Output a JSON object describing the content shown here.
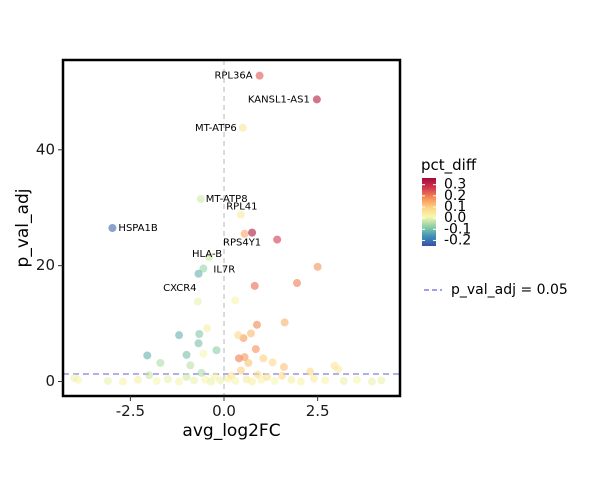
{
  "chart_data": {
    "type": "scatter",
    "xlabel": "avg_log2FC",
    "ylabel": "p_val_adj",
    "xlim": [
      -4.3,
      4.7
    ],
    "ylim": [
      -2.5,
      55.5
    ],
    "x_ticks": [
      -2.5,
      0.0,
      2.5
    ],
    "x_tick_labels": [
      "-2.5",
      "0.0",
      "2.5"
    ],
    "y_ticks": [
      0,
      20,
      40
    ],
    "y_tick_labels": [
      "0",
      "20",
      "40"
    ],
    "grid": false,
    "reference_lines": {
      "vertical_x": 0,
      "horizontal_y": 1.3,
      "horizontal_label": "p_val_adj = 0.05",
      "horizontal_color": "#8080e0"
    },
    "color_scale": {
      "title": "pct_diff",
      "min": -0.25,
      "max": 0.36,
      "ticks": [
        0.3,
        0.2,
        0.1,
        0.0,
        -0.1,
        -0.2
      ],
      "tick_labels": [
        "0.3",
        "0.2",
        "0.1",
        "0.0",
        "-0.1",
        "-0.2"
      ],
      "stops": [
        "#3b4ea8",
        "#3f90b7",
        "#8fd0a4",
        "#f7f7b0",
        "#fdd080",
        "#f58a55",
        "#d0364c",
        "#a40a3c"
      ]
    },
    "legend_position": "right",
    "labeled_points": [
      {
        "gene": "RPL36A",
        "x": 0.95,
        "y": 52.8,
        "c": 0.24
      },
      {
        "gene": "KANSL1-AS1",
        "x": 2.48,
        "y": 48.7,
        "c": 0.33
      },
      {
        "gene": "MT-ATP6",
        "x": 0.5,
        "y": 43.8,
        "c": 0.05
      },
      {
        "gene": "MT-ATP8",
        "x": -0.62,
        "y": 31.5,
        "c": -0.02
      },
      {
        "gene": "RPL41",
        "x": 0.45,
        "y": 28.8,
        "c": 0.04
      },
      {
        "gene": "HSPA1B",
        "x": -2.98,
        "y": 26.5,
        "c": -0.22
      },
      {
        "gene": "RPS4Y1",
        "x": 0.75,
        "y": 25.7,
        "c": 0.34
      },
      {
        "gene": "HLA-B",
        "x": -0.4,
        "y": 21.5,
        "c": -0.03
      },
      {
        "gene": "IL7R",
        "x": -0.55,
        "y": 19.5,
        "c": -0.07
      },
      {
        "gene": "CXCR4",
        "x": -0.68,
        "y": 18.6,
        "c": -0.12
      }
    ],
    "points": [
      {
        "x": 1.42,
        "y": 24.5,
        "c": 0.27
      },
      {
        "x": 0.55,
        "y": 25.5,
        "c": 0.15
      },
      {
        "x": 2.5,
        "y": 19.8,
        "c": 0.18
      },
      {
        "x": 1.95,
        "y": 17.0,
        "c": 0.2
      },
      {
        "x": 0.82,
        "y": 16.5,
        "c": 0.22
      },
      {
        "x": -0.7,
        "y": 13.8,
        "c": 0.0
      },
      {
        "x": 0.3,
        "y": 14.0,
        "c": 0.02
      },
      {
        "x": 1.62,
        "y": 10.2,
        "c": 0.14
      },
      {
        "x": 0.88,
        "y": 9.8,
        "c": 0.19
      },
      {
        "x": 0.72,
        "y": 8.3,
        "c": 0.13
      },
      {
        "x": 0.52,
        "y": 7.5,
        "c": 0.17
      },
      {
        "x": 0.38,
        "y": 8.0,
        "c": 0.08
      },
      {
        "x": -1.2,
        "y": 8.0,
        "c": -0.12
      },
      {
        "x": -0.66,
        "y": 8.2,
        "c": -0.09
      },
      {
        "x": -0.45,
        "y": 9.2,
        "c": 0.03
      },
      {
        "x": -0.68,
        "y": 6.6,
        "c": -0.1
      },
      {
        "x": -1.0,
        "y": 4.6,
        "c": -0.1
      },
      {
        "x": -2.05,
        "y": 4.5,
        "c": -0.12
      },
      {
        "x": -0.55,
        "y": 4.8,
        "c": 0.01
      },
      {
        "x": -0.2,
        "y": 5.4,
        "c": -0.08
      },
      {
        "x": 0.85,
        "y": 5.6,
        "c": 0.18
      },
      {
        "x": 1.05,
        "y": 4.0,
        "c": 0.1
      },
      {
        "x": 1.3,
        "y": 3.3,
        "c": 0.08
      },
      {
        "x": 0.4,
        "y": 4.0,
        "c": 0.2
      },
      {
        "x": 0.55,
        "y": 4.2,
        "c": 0.17
      },
      {
        "x": 0.65,
        "y": 3.2,
        "c": 0.12
      },
      {
        "x": 1.6,
        "y": 2.5,
        "c": 0.12
      },
      {
        "x": -1.7,
        "y": 3.2,
        "c": -0.05
      },
      {
        "x": -0.9,
        "y": 2.8,
        "c": -0.04
      },
      {
        "x": 2.95,
        "y": 2.7,
        "c": 0.05
      },
      {
        "x": 3.05,
        "y": 2.1,
        "c": 0.04
      },
      {
        "x": 2.3,
        "y": 1.7,
        "c": 0.08
      },
      {
        "x": -4.0,
        "y": 0.6,
        "c": 0.0
      },
      {
        "x": -3.9,
        "y": 0.3,
        "c": 0.02
      },
      {
        "x": -3.1,
        "y": 0.1,
        "c": 0.0
      },
      {
        "x": -2.7,
        "y": 0.0,
        "c": 0.02
      },
      {
        "x": -2.3,
        "y": 0.3,
        "c": 0.03
      },
      {
        "x": -2.0,
        "y": 1.1,
        "c": -0.03
      },
      {
        "x": -1.8,
        "y": 0.1,
        "c": 0.01
      },
      {
        "x": -1.5,
        "y": 0.4,
        "c": 0.0
      },
      {
        "x": -1.2,
        "y": 0.0,
        "c": 0.02
      },
      {
        "x": -1.0,
        "y": 0.8,
        "c": -0.02
      },
      {
        "x": -0.8,
        "y": 0.2,
        "c": 0.0
      },
      {
        "x": -0.6,
        "y": 1.5,
        "c": -0.05
      },
      {
        "x": -0.5,
        "y": 0.3,
        "c": 0.01
      },
      {
        "x": -0.35,
        "y": 0.0,
        "c": 0.0
      },
      {
        "x": -0.25,
        "y": 0.9,
        "c": 0.02
      },
      {
        "x": -0.1,
        "y": 0.2,
        "c": 0.0
      },
      {
        "x": 0.1,
        "y": 0.5,
        "c": 0.03
      },
      {
        "x": 0.2,
        "y": 1.0,
        "c": 0.05
      },
      {
        "x": 0.3,
        "y": 0.1,
        "c": 0.02
      },
      {
        "x": 0.45,
        "y": 1.9,
        "c": 0.1
      },
      {
        "x": 0.6,
        "y": 0.4,
        "c": 0.04
      },
      {
        "x": 0.75,
        "y": 0.0,
        "c": 0.03
      },
      {
        "x": 0.9,
        "y": 1.2,
        "c": 0.07
      },
      {
        "x": 1.0,
        "y": 0.3,
        "c": 0.02
      },
      {
        "x": 1.15,
        "y": 0.8,
        "c": 0.06
      },
      {
        "x": 1.35,
        "y": 0.1,
        "c": 0.01
      },
      {
        "x": 1.55,
        "y": 1.0,
        "c": 0.08
      },
      {
        "x": 1.8,
        "y": 0.3,
        "c": 0.03
      },
      {
        "x": 2.05,
        "y": 0.0,
        "c": 0.02
      },
      {
        "x": 2.4,
        "y": 0.5,
        "c": 0.04
      },
      {
        "x": 2.7,
        "y": 0.2,
        "c": 0.02
      },
      {
        "x": 3.2,
        "y": 0.1,
        "c": 0.0
      },
      {
        "x": 3.55,
        "y": 0.3,
        "c": 0.01
      },
      {
        "x": 3.95,
        "y": 0.0,
        "c": 0.0
      },
      {
        "x": 4.2,
        "y": 0.2,
        "c": 0.0
      }
    ]
  }
}
